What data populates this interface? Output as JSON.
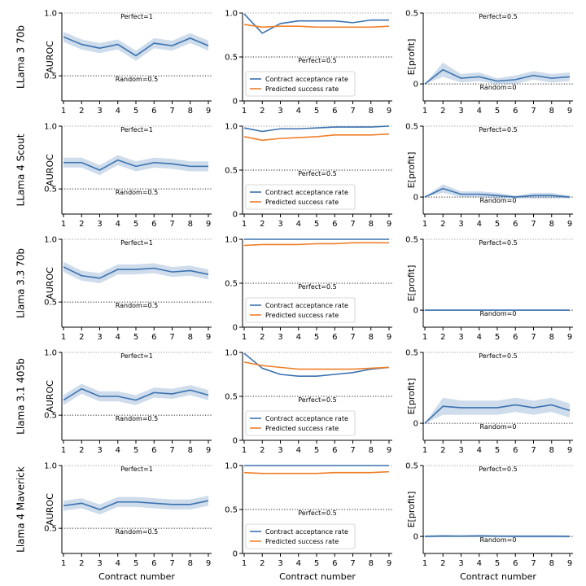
{
  "chart_data": {
    "type": "line",
    "x": [
      1,
      2,
      3,
      4,
      5,
      6,
      7,
      8,
      9
    ],
    "xlabel": "Contract number",
    "rows": [
      {
        "model": "LLama 3 70b",
        "panels": [
          {
            "kind": "auroc",
            "ylabel": "AUROC",
            "ylim": [
              0.3,
              1.0
            ],
            "yticks": [
              "0.5",
              "1.0"
            ],
            "ref_lines": [
              {
                "y": 1.0,
                "label": "Perfect=1",
                "style": "dotted-gray"
              },
              {
                "y": 0.5,
                "label": "Random=0.5",
                "style": "dotted-black"
              }
            ],
            "series": [
              {
                "values": [
                  0.81,
                  0.75,
                  0.72,
                  0.75,
                  0.66,
                  0.76,
                  0.74,
                  0.8,
                  0.74
                ],
                "band": [
                  0.04,
                  0.04,
                  0.04,
                  0.04,
                  0.04,
                  0.04,
                  0.04,
                  0.04,
                  0.04
                ],
                "color": "#3b72b0"
              }
            ]
          },
          {
            "kind": "rates",
            "ylabel": "",
            "ylim": [
              0,
              1.0
            ],
            "yticks": [
              "0",
              "0.5",
              "1.0"
            ],
            "ref_lines": [
              {
                "y": 1.0,
                "label": "",
                "style": "dotted-gray"
              },
              {
                "y": 0.5,
                "label": "Perfect=0.5",
                "style": "dotted-black"
              }
            ],
            "series": [
              {
                "name": "Contract acceptance rate",
                "values": [
                  0.99,
                  0.77,
                  0.88,
                  0.91,
                  0.91,
                  0.91,
                  0.89,
                  0.92,
                  0.92
                ],
                "color": "#3b72b0"
              },
              {
                "name": "Predicted success rate",
                "values": [
                  0.87,
                  0.84,
                  0.85,
                  0.85,
                  0.84,
                  0.84,
                  0.84,
                  0.84,
                  0.85
                ],
                "color": "#f07f2a"
              }
            ],
            "legend": "lower-left"
          },
          {
            "kind": "profit",
            "ylabel": "E[profit]",
            "ylim": [
              -0.12,
              0.5
            ],
            "yticks": [
              "0",
              "0.5"
            ],
            "ref_lines": [
              {
                "y": 0.5,
                "label": "Perfect=0.5",
                "style": "dotted-gray"
              },
              {
                "y": 0.0,
                "label": "Random=0",
                "style": "dotted-black"
              }
            ],
            "series": [
              {
                "values": [
                  0.0,
                  0.1,
                  0.04,
                  0.05,
                  0.02,
                  0.03,
                  0.06,
                  0.04,
                  0.05
                ],
                "band": [
                  0.0,
                  0.05,
                  0.03,
                  0.03,
                  0.02,
                  0.03,
                  0.03,
                  0.03,
                  0.03
                ],
                "color": "#3b72b0"
              }
            ]
          }
        ]
      },
      {
        "model": "LLama 4 Scout",
        "panels": [
          {
            "kind": "auroc",
            "ylabel": "AUROC",
            "ylim": [
              0.3,
              1.0
            ],
            "yticks": [
              "0.5",
              "1.0"
            ],
            "ref_lines": [
              {
                "y": 1.0,
                "label": "Perfect=1",
                "style": "dotted-gray"
              },
              {
                "y": 0.5,
                "label": "Random=0.5",
                "style": "dotted-black"
              }
            ],
            "series": [
              {
                "values": [
                  0.71,
                  0.71,
                  0.65,
                  0.73,
                  0.68,
                  0.71,
                  0.7,
                  0.68,
                  0.68
                ],
                "band": [
                  0.04,
                  0.04,
                  0.04,
                  0.04,
                  0.04,
                  0.04,
                  0.04,
                  0.04,
                  0.04
                ],
                "color": "#3b72b0"
              }
            ]
          },
          {
            "kind": "rates",
            "ylabel": "",
            "ylim": [
              0,
              1.0
            ],
            "yticks": [
              "0",
              "0.5",
              "1.0"
            ],
            "ref_lines": [
              {
                "y": 1.0,
                "label": "",
                "style": "dotted-gray"
              },
              {
                "y": 0.5,
                "label": "Perfect=0.5",
                "style": "dotted-black"
              }
            ],
            "series": [
              {
                "name": "Contract acceptance rate",
                "values": [
                  0.98,
                  0.94,
                  0.97,
                  0.97,
                  0.98,
                  0.99,
                  0.99,
                  0.99,
                  1.0
                ],
                "color": "#3b72b0"
              },
              {
                "name": "Predicted success rate",
                "values": [
                  0.88,
                  0.84,
                  0.86,
                  0.87,
                  0.88,
                  0.9,
                  0.9,
                  0.9,
                  0.91
                ],
                "color": "#f07f2a"
              }
            ],
            "legend": "lower-left"
          },
          {
            "kind": "profit",
            "ylabel": "E[profit]",
            "ylim": [
              -0.12,
              0.5
            ],
            "yticks": [
              "0",
              "0.5"
            ],
            "ref_lines": [
              {
                "y": 0.5,
                "label": "Perfect=0.5",
                "style": "dotted-gray"
              },
              {
                "y": 0.0,
                "label": "Random=0",
                "style": "dotted-black"
              }
            ],
            "series": [
              {
                "values": [
                  0.0,
                  0.06,
                  0.02,
                  0.02,
                  0.01,
                  0.0,
                  0.01,
                  0.01,
                  0.0
                ],
                "band": [
                  0.0,
                  0.03,
                  0.02,
                  0.02,
                  0.02,
                  0.01,
                  0.02,
                  0.02,
                  0.01
                ],
                "color": "#3b72b0"
              }
            ]
          }
        ]
      },
      {
        "model": "Llama 3.3 70b",
        "panels": [
          {
            "kind": "auroc",
            "ylabel": "AUROC",
            "ylim": [
              0.3,
              1.0
            ],
            "yticks": [
              "0.5",
              "1.0"
            ],
            "ref_lines": [
              {
                "y": 1.0,
                "label": "Perfect=1",
                "style": "dotted-gray"
              },
              {
                "y": 0.5,
                "label": "Random=0.5",
                "style": "dotted-black"
              }
            ],
            "series": [
              {
                "values": [
                  0.78,
                  0.71,
                  0.69,
                  0.76,
                  0.76,
                  0.77,
                  0.74,
                  0.75,
                  0.72
                ],
                "band": [
                  0.04,
                  0.04,
                  0.04,
                  0.04,
                  0.04,
                  0.04,
                  0.04,
                  0.04,
                  0.04
                ],
                "color": "#3b72b0"
              }
            ]
          },
          {
            "kind": "rates",
            "ylabel": "",
            "ylim": [
              0,
              1.0
            ],
            "yticks": [
              "0",
              "0.5",
              "1.0"
            ],
            "ref_lines": [
              {
                "y": 1.0,
                "label": "",
                "style": "dotted-gray"
              },
              {
                "y": 0.5,
                "label": "Perfect=0.5",
                "style": "dotted-black"
              }
            ],
            "series": [
              {
                "name": "Contract acceptance rate",
                "values": [
                  1.0,
                  1.0,
                  1.0,
                  1.0,
                  1.0,
                  1.0,
                  1.0,
                  1.0,
                  1.0
                ],
                "color": "#3b72b0"
              },
              {
                "name": "Predicted success rate",
                "values": [
                  0.93,
                  0.94,
                  0.94,
                  0.94,
                  0.95,
                  0.95,
                  0.96,
                  0.96,
                  0.96
                ],
                "color": "#f07f2a"
              }
            ],
            "legend": "lower-left"
          },
          {
            "kind": "profit",
            "ylabel": "E[profit]",
            "ylim": [
              -0.12,
              0.5
            ],
            "yticks": [
              "0",
              "0.5"
            ],
            "ref_lines": [
              {
                "y": 0.5,
                "label": "Perfect=0.5",
                "style": "dotted-gray"
              },
              {
                "y": 0.0,
                "label": "Random=0",
                "style": "dotted-black"
              }
            ],
            "series": [
              {
                "values": [
                  0.0,
                  0.0,
                  0.0,
                  0.0,
                  0.0,
                  0.0,
                  0.0,
                  0.0,
                  0.0
                ],
                "band": [
                  0.003,
                  0.003,
                  0.003,
                  0.003,
                  0.003,
                  0.003,
                  0.003,
                  0.003,
                  0.003
                ],
                "color": "#3b72b0"
              }
            ]
          }
        ]
      },
      {
        "model": "Llama 3.1 405b",
        "panels": [
          {
            "kind": "auroc",
            "ylabel": "AUROC",
            "ylim": [
              0.3,
              1.0
            ],
            "yticks": [
              "0.5",
              "1.0"
            ],
            "ref_lines": [
              {
                "y": 1.0,
                "label": "Perfect=1",
                "style": "dotted-gray"
              },
              {
                "y": 0.5,
                "label": "Random=0.5",
                "style": "dotted-black"
              }
            ],
            "series": [
              {
                "values": [
                  0.62,
                  0.71,
                  0.65,
                  0.65,
                  0.62,
                  0.68,
                  0.67,
                  0.7,
                  0.66
                ],
                "band": [
                  0.04,
                  0.04,
                  0.04,
                  0.04,
                  0.04,
                  0.04,
                  0.04,
                  0.04,
                  0.04
                ],
                "color": "#3b72b0"
              }
            ]
          },
          {
            "kind": "rates",
            "ylabel": "",
            "ylim": [
              0,
              1.0
            ],
            "yticks": [
              "0",
              "0.5",
              "1.0"
            ],
            "ref_lines": [
              {
                "y": 1.0,
                "label": "",
                "style": "dotted-gray"
              },
              {
                "y": 0.5,
                "label": "Perfect=0.5",
                "style": "dotted-black"
              }
            ],
            "series": [
              {
                "name": "Contract acceptance rate",
                "values": [
                  0.99,
                  0.82,
                  0.75,
                  0.73,
                  0.73,
                  0.75,
                  0.77,
                  0.81,
                  0.83
                ],
                "color": "#3b72b0"
              },
              {
                "name": "Predicted success rate",
                "values": [
                  0.89,
                  0.85,
                  0.83,
                  0.81,
                  0.81,
                  0.81,
                  0.81,
                  0.82,
                  0.83
                ],
                "color": "#f07f2a"
              }
            ],
            "legend": "lower-left"
          },
          {
            "kind": "profit",
            "ylabel": "E[profit]",
            "ylim": [
              -0.12,
              0.5
            ],
            "yticks": [
              "0",
              "0.5"
            ],
            "ref_lines": [
              {
                "y": 0.5,
                "label": "Perfect=0.5",
                "style": "dotted-gray"
              },
              {
                "y": 0.0,
                "label": "Random=0",
                "style": "dotted-black"
              }
            ],
            "series": [
              {
                "values": [
                  0.0,
                  0.12,
                  0.11,
                  0.11,
                  0.11,
                  0.13,
                  0.11,
                  0.13,
                  0.09
                ],
                "band": [
                  0.0,
                  0.06,
                  0.05,
                  0.05,
                  0.05,
                  0.05,
                  0.05,
                  0.05,
                  0.05
                ],
                "color": "#3b72b0"
              }
            ]
          }
        ]
      },
      {
        "model": "Llama 4 Maverick",
        "panels": [
          {
            "kind": "auroc",
            "ylabel": "AUROC",
            "ylim": [
              0.3,
              1.0
            ],
            "yticks": [
              "0.5",
              "1.0"
            ],
            "ref_lines": [
              {
                "y": 1.0,
                "label": "Perfect=1",
                "style": "dotted-gray"
              },
              {
                "y": 0.5,
                "label": "Random=0.5",
                "style": "dotted-black"
              }
            ],
            "series": [
              {
                "values": [
                  0.68,
                  0.7,
                  0.65,
                  0.71,
                  0.71,
                  0.7,
                  0.69,
                  0.69,
                  0.72
                ],
                "band": [
                  0.04,
                  0.04,
                  0.04,
                  0.04,
                  0.04,
                  0.04,
                  0.04,
                  0.04,
                  0.04
                ],
                "color": "#3b72b0"
              }
            ]
          },
          {
            "kind": "rates",
            "ylabel": "",
            "ylim": [
              0,
              1.0
            ],
            "yticks": [
              "0",
              "0.5",
              "1.0"
            ],
            "ref_lines": [
              {
                "y": 1.0,
                "label": "",
                "style": "dotted-gray"
              },
              {
                "y": 0.5,
                "label": "Perfect=0.5",
                "style": "dotted-black"
              }
            ],
            "series": [
              {
                "name": "Contract acceptance rate",
                "values": [
                  1.0,
                  1.0,
                  1.0,
                  1.0,
                  1.0,
                  1.0,
                  1.0,
                  1.0,
                  1.0
                ],
                "color": "#3b72b0"
              },
              {
                "name": "Predicted success rate",
                "values": [
                  0.92,
                  0.91,
                  0.91,
                  0.91,
                  0.91,
                  0.92,
                  0.92,
                  0.92,
                  0.93
                ],
                "color": "#f07f2a"
              }
            ],
            "legend": "lower-left"
          },
          {
            "kind": "profit",
            "ylabel": "E[profit]",
            "ylim": [
              -0.12,
              0.5
            ],
            "yticks": [
              "0",
              "0.5"
            ],
            "ref_lines": [
              {
                "y": 0.5,
                "label": "Perfect=0.5",
                "style": "dotted-gray"
              },
              {
                "y": 0.0,
                "label": "Random=0",
                "style": "dotted-black"
              }
            ],
            "series": [
              {
                "values": [
                  0.0,
                  0.003,
                  0.002,
                  0.004,
                  0.002,
                  0.001,
                  0.001,
                  0.001,
                  0.0
                ],
                "band": [
                  0.008,
                  0.008,
                  0.008,
                  0.008,
                  0.008,
                  0.008,
                  0.008,
                  0.008,
                  0.008
                ],
                "color": "#3b72b0"
              }
            ]
          }
        ]
      }
    ]
  }
}
